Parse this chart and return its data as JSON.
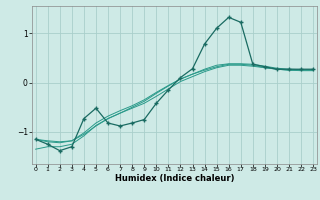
{
  "xlabel": "Humidex (Indice chaleur)",
  "x": [
    0,
    1,
    2,
    3,
    4,
    5,
    6,
    7,
    8,
    9,
    10,
    11,
    12,
    13,
    14,
    15,
    16,
    17,
    18,
    19,
    20,
    21,
    22,
    23
  ],
  "y_main": [
    -1.15,
    -1.25,
    -1.38,
    -1.3,
    -0.73,
    -0.52,
    -0.82,
    -0.88,
    -0.82,
    -0.75,
    -0.42,
    -0.15,
    0.1,
    0.28,
    0.78,
    1.1,
    1.32,
    1.22,
    0.37,
    0.32,
    0.27,
    0.27,
    0.27,
    0.27
  ],
  "y_line1": [
    -1.15,
    -1.18,
    -1.2,
    -1.18,
    -1.05,
    -0.88,
    -0.73,
    -0.62,
    -0.52,
    -0.42,
    -0.28,
    -0.13,
    0.02,
    0.12,
    0.22,
    0.3,
    0.35,
    0.35,
    0.33,
    0.3,
    0.27,
    0.25,
    0.25,
    0.25
  ],
  "y_line2": [
    -1.15,
    -1.2,
    -1.22,
    -1.18,
    -1.02,
    -0.82,
    -0.68,
    -0.57,
    -0.47,
    -0.35,
    -0.2,
    -0.06,
    0.07,
    0.17,
    0.27,
    0.35,
    0.38,
    0.38,
    0.37,
    0.33,
    0.29,
    0.27,
    0.26,
    0.26
  ],
  "y_line3": [
    -1.35,
    -1.3,
    -1.3,
    -1.25,
    -1.08,
    -0.87,
    -0.73,
    -0.62,
    -0.5,
    -0.38,
    -0.22,
    -0.07,
    0.07,
    0.17,
    0.25,
    0.32,
    0.37,
    0.37,
    0.35,
    0.3,
    0.27,
    0.25,
    0.24,
    0.24
  ],
  "bg_color": "#ceeae6",
  "grid_color": "#aacfcb",
  "line_color_main": "#1a6b62",
  "line_color_trend": "#2a9a8a",
  "yticks": [
    -1,
    0,
    1
  ],
  "xticks": [
    0,
    1,
    2,
    3,
    4,
    5,
    6,
    7,
    8,
    9,
    10,
    11,
    12,
    13,
    14,
    15,
    16,
    17,
    18,
    19,
    20,
    21,
    22,
    23
  ],
  "ylim": [
    -1.65,
    1.55
  ],
  "xlim": [
    -0.3,
    23.3
  ]
}
